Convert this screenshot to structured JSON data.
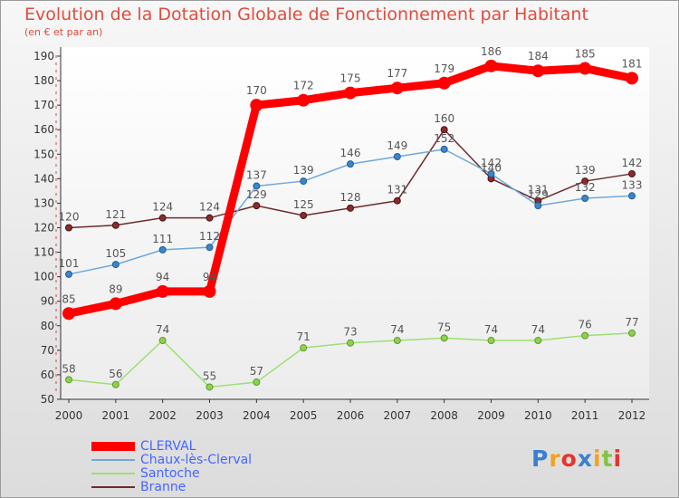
{
  "header": {
    "title": "Evolution de la Dotation Globale de Fonctionnement par Habitant",
    "subtitle": "(en € et par an)"
  },
  "logo": {
    "text": "Proxiti",
    "letters": [
      {
        "ch": "P",
        "color": "#3b7fd0"
      },
      {
        "ch": "r",
        "color": "#f2a21d"
      },
      {
        "ch": "o",
        "color": "#e5342a"
      },
      {
        "ch": "x",
        "color": "#3b7fd0"
      },
      {
        "ch": "i",
        "color": "#f2a21d"
      },
      {
        "ch": "t",
        "color": "#84c341"
      },
      {
        "ch": "i",
        "color": "#e5342a"
      }
    ]
  },
  "chart_data": {
    "type": "line",
    "title": "Evolution de la Dotation Globale de Fonctionnement par Habitant",
    "subtitle": "(en € et par an)",
    "x": [
      "2000",
      "2001",
      "2002",
      "2003",
      "2004",
      "2005",
      "2006",
      "2007",
      "2008",
      "2009",
      "2010",
      "2011",
      "2012"
    ],
    "ylim": [
      50,
      190
    ],
    "yticks": [
      50,
      60,
      70,
      80,
      90,
      100,
      110,
      120,
      130,
      140,
      150,
      160,
      170,
      180,
      190
    ],
    "grid": false,
    "legend_position": "bottom-left",
    "series": [
      {
        "name": "CLERVAL",
        "values": [
          85,
          89,
          94,
          94,
          170,
          172,
          175,
          177,
          179,
          186,
          184,
          185,
          181
        ],
        "color": "#ff0000",
        "line_width": 9,
        "marker_radius": 6.5,
        "marker_fill": "#ff0000",
        "marker_stroke": "#ff0000",
        "label_color": "#555555"
      },
      {
        "name": "Chaux-lès-Clerval",
        "values": [
          101,
          105,
          111,
          112,
          137,
          139,
          146,
          149,
          152,
          142,
          129,
          132,
          133
        ],
        "color": "#6fa8dc",
        "line_width": 1.5,
        "marker_radius": 3.5,
        "marker_fill": "#3d85c6",
        "marker_stroke": "#1f5e9e",
        "label_color": "#555555"
      },
      {
        "name": "Santoche",
        "values": [
          58,
          56,
          74,
          55,
          57,
          71,
          73,
          74,
          75,
          74,
          74,
          76,
          77
        ],
        "color": "#9be071",
        "line_width": 1.5,
        "marker_radius": 3.5,
        "marker_fill": "#8fd14f",
        "marker_stroke": "#5c9a2c",
        "label_color": "#555555"
      },
      {
        "name": "Branne",
        "values": [
          120,
          121,
          124,
          124,
          129,
          125,
          128,
          131,
          160,
          140,
          131,
          139,
          142
        ],
        "color": "#6e2b2b",
        "line_width": 1.5,
        "marker_radius": 3.5,
        "marker_fill": "#8b2b2b",
        "marker_stroke": "#4a1212",
        "label_color": "#555555"
      }
    ]
  }
}
